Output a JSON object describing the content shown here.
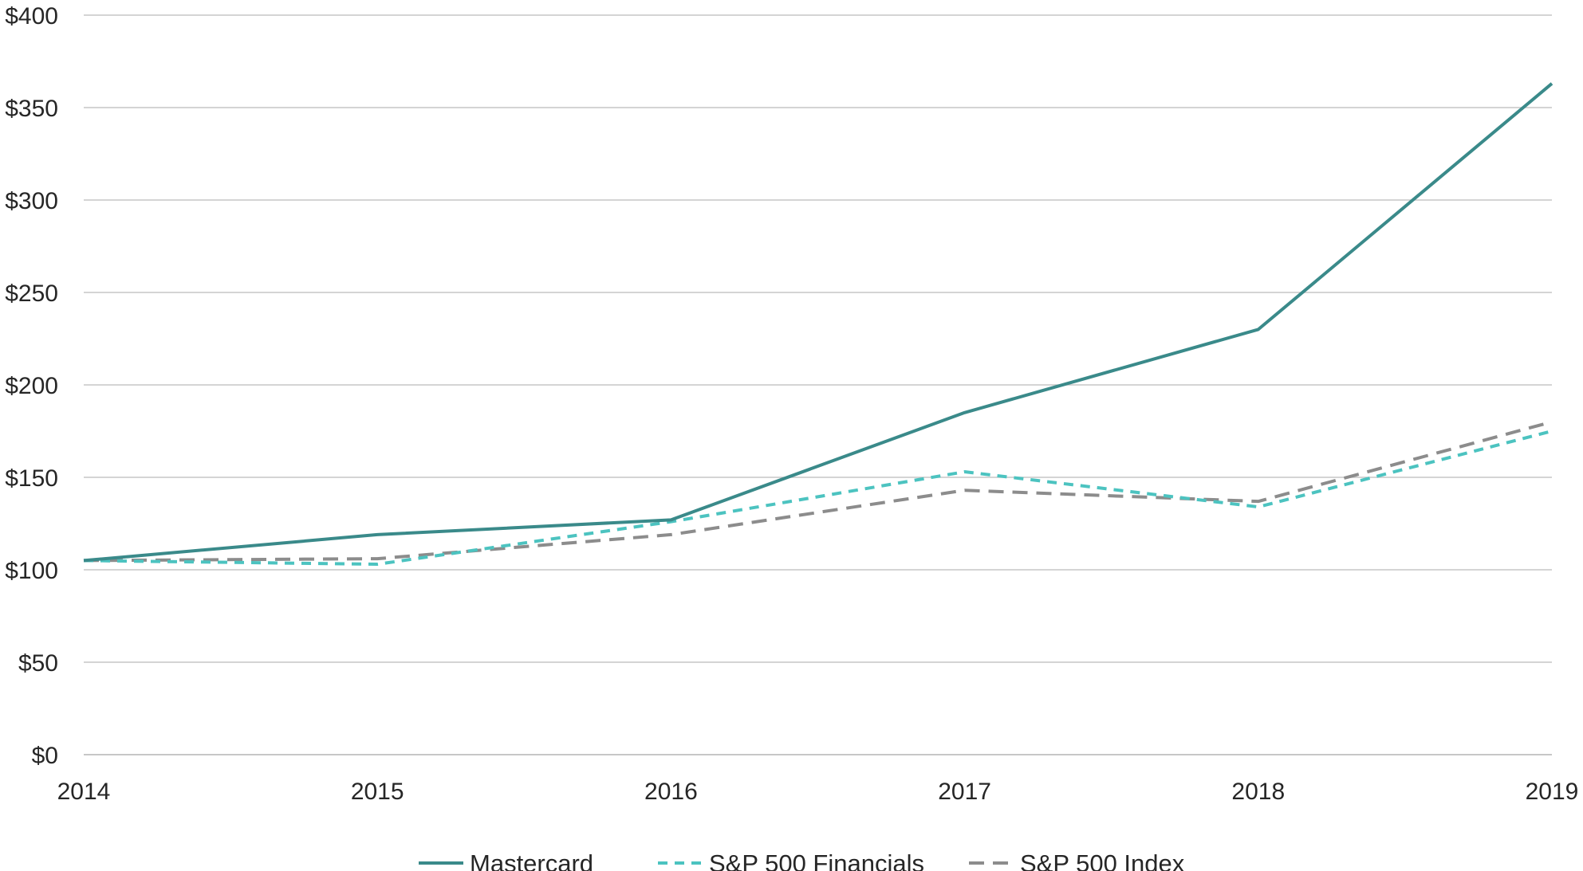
{
  "chart_data": {
    "type": "line",
    "title": "",
    "xlabel": "",
    "ylabel": "",
    "categories": [
      "2014",
      "2015",
      "2016",
      "2017",
      "2018",
      "2019"
    ],
    "ylim": [
      0,
      400
    ],
    "y_ticks": [
      0,
      50,
      100,
      150,
      200,
      250,
      300,
      350,
      400
    ],
    "y_tick_labels": [
      "$0",
      "$50",
      "$100",
      "$150",
      "$200",
      "$250",
      "$300",
      "$350",
      "$400"
    ],
    "grid": "horizontal",
    "legend_position": "bottom-center",
    "series": [
      {
        "name": "Mastercard",
        "values": [
          105,
          119,
          127,
          185,
          230,
          363
        ],
        "color": "#3a8a8a",
        "style": "solid"
      },
      {
        "name": "S&P 500 Financials",
        "values": [
          105,
          103,
          126,
          153,
          134,
          175
        ],
        "color": "#4cc3c0",
        "style": "dashed"
      },
      {
        "name": "S&P 500 Index",
        "values": [
          105,
          106,
          119,
          143,
          137,
          180
        ],
        "color": "#8c8c8c",
        "style": "dashed"
      }
    ]
  }
}
